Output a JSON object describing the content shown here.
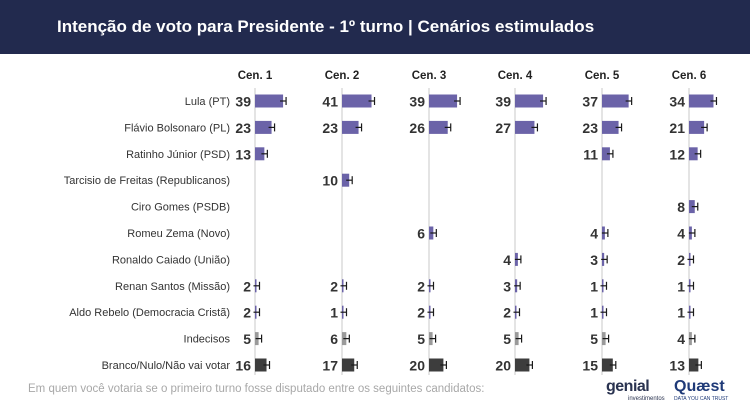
{
  "header": {
    "title": "Intenção de voto para Presidente - 1º turno | Cenários estimulados"
  },
  "footnote": "Em quem você votaria se o primeiro turno fosse disputado entre os seguintes candidatos:",
  "logos": {
    "genial_name": "genial",
    "genial_sub": "investimentos",
    "quaest_name": "Quæst",
    "quaest_sub": "DATA YOU CAN TRUST"
  },
  "colors": {
    "header_bg": "#222a4e",
    "candidate_bar": "#6b63a8",
    "blank_bar": "#3d3d3d",
    "error_bar": "#1a1a1a",
    "axis_line": "#c8c8c8"
  },
  "chart_data": {
    "type": "bar",
    "orientation": "horizontal",
    "grid": false,
    "scenarios": [
      "Cen. 1",
      "Cen. 2",
      "Cen. 3",
      "Cen. 4",
      "Cen. 5",
      "Cen. 6"
    ],
    "categories": [
      "Lula (PT)",
      "Flávio Bolsonaro (PL)",
      "Ratinho Júnior (PSD)",
      "Tarcisio de Freitas (Republicanos)",
      "Ciro Gomes (PSDB)",
      "Romeu Zema (Novo)",
      "Ronaldo Caiado (União)",
      "Renan Santos (Missão)",
      "Aldo Rebelo (Democracia Cristã)",
      "Indecisos",
      "Branco/Nulo/Não vai votar"
    ],
    "series": [
      {
        "name": "Cen. 1",
        "values": [
          39,
          23,
          13,
          null,
          null,
          null,
          null,
          2,
          2,
          5,
          16
        ]
      },
      {
        "name": "Cen. 2",
        "values": [
          41,
          23,
          null,
          10,
          null,
          null,
          null,
          2,
          1,
          6,
          17
        ]
      },
      {
        "name": "Cen. 3",
        "values": [
          39,
          26,
          null,
          null,
          null,
          6,
          null,
          2,
          2,
          5,
          20
        ]
      },
      {
        "name": "Cen. 4",
        "values": [
          39,
          27,
          null,
          null,
          null,
          null,
          4,
          3,
          2,
          5,
          20
        ]
      },
      {
        "name": "Cen. 5",
        "values": [
          37,
          23,
          11,
          null,
          null,
          4,
          3,
          1,
          1,
          5,
          15
        ]
      },
      {
        "name": "Cen. 6",
        "values": [
          34,
          21,
          12,
          null,
          8,
          4,
          2,
          1,
          1,
          4,
          13
        ]
      }
    ]
  }
}
